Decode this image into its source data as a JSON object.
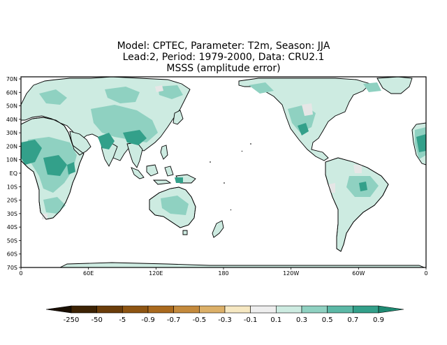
{
  "title": {
    "line1": "Model: CPTEC, Parameter: T2m, Season: JJA",
    "line2": "Lead:2, Period: 1979-2000, Data: CRU2.1",
    "line3": "MSSS (amplitude error)"
  },
  "map": {
    "lat_labels": [
      "70N",
      "60N",
      "50N",
      "40N",
      "30N",
      "20N",
      "10N",
      "EQ",
      "10S",
      "20S",
      "30S",
      "40S",
      "50S",
      "60S",
      "70S"
    ],
    "lon_labels": [
      "0",
      "60E",
      "120E",
      "180",
      "120W",
      "60W",
      "0"
    ]
  },
  "colorbar": {
    "labels": [
      "-250",
      "-50",
      "-5",
      "-0.9",
      "-0.7",
      "-0.5",
      "-0.3",
      "-0.1",
      "0.1",
      "0.3",
      "0.5",
      "0.7",
      "0.9"
    ],
    "colors": [
      "#1a0f02",
      "#3d2304",
      "#6b3d0a",
      "#8e5512",
      "#aa6a1e",
      "#c48a3c",
      "#dcb068",
      "#f6e8c2",
      "#eeeeee",
      "#cdebe1",
      "#8fd1c1",
      "#5cb8a6",
      "#33a08a",
      "#1e8a72"
    ]
  },
  "colors": {
    "land_base": "#cdebe1",
    "light": "#e6e6e6",
    "mid": "#8fd1c1",
    "dark": "#33a08a",
    "ocean": "#ffffff"
  }
}
